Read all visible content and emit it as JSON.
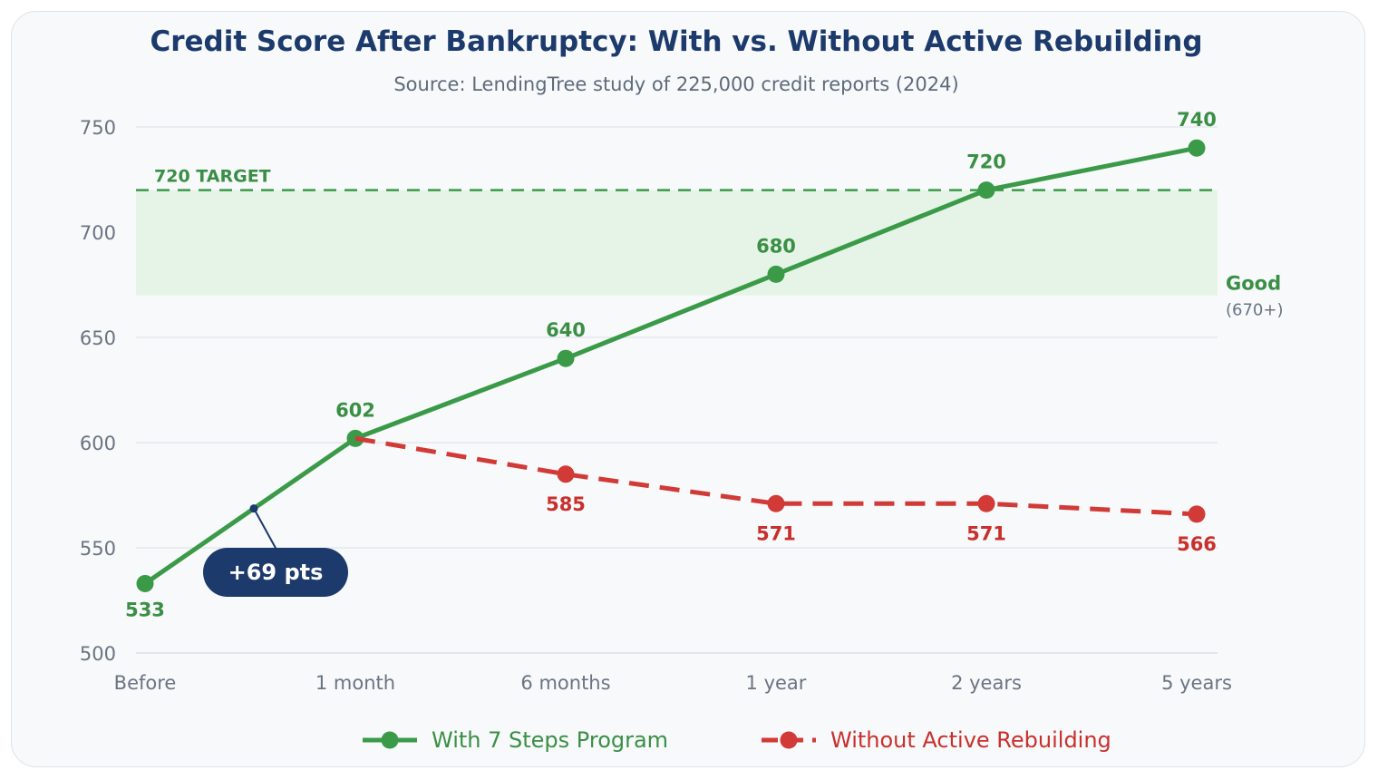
{
  "chart_data": {
    "type": "line",
    "title": "Credit Score After Bankruptcy: With vs. Without Active Rebuilding",
    "subtitle": "Source: LendingTree study of 225,000 credit reports (2024)",
    "categories": [
      "Before",
      "1 month",
      "6 months",
      "1 year",
      "2 years",
      "5 years"
    ],
    "ylim": [
      500,
      750
    ],
    "yticks": [
      500,
      550,
      600,
      650,
      700,
      750
    ],
    "grid": true,
    "series": [
      {
        "name": "With 7 Steps Program",
        "color": "#3a9a48",
        "style": "solid",
        "values": [
          533,
          602,
          640,
          680,
          720,
          740
        ],
        "labels": [
          "533",
          "602",
          "640",
          "680",
          "720",
          "740"
        ]
      },
      {
        "name": "Without Active Rebuilding",
        "color": "#d13a36",
        "style": "dashed",
        "start_index": 1,
        "values": [
          null,
          602,
          585,
          571,
          571,
          566
        ],
        "labels": [
          "",
          "",
          "585",
          "571",
          "571",
          "566"
        ]
      }
    ],
    "target": {
      "value": 720,
      "label": "720 TARGET"
    },
    "band": {
      "from": 670,
      "to": 720,
      "label": "Good",
      "sublabel": "(670+)"
    },
    "callout": {
      "text": "+69 pts",
      "between": [
        0,
        1
      ]
    },
    "legend": {
      "placement": "bottom-center"
    }
  }
}
